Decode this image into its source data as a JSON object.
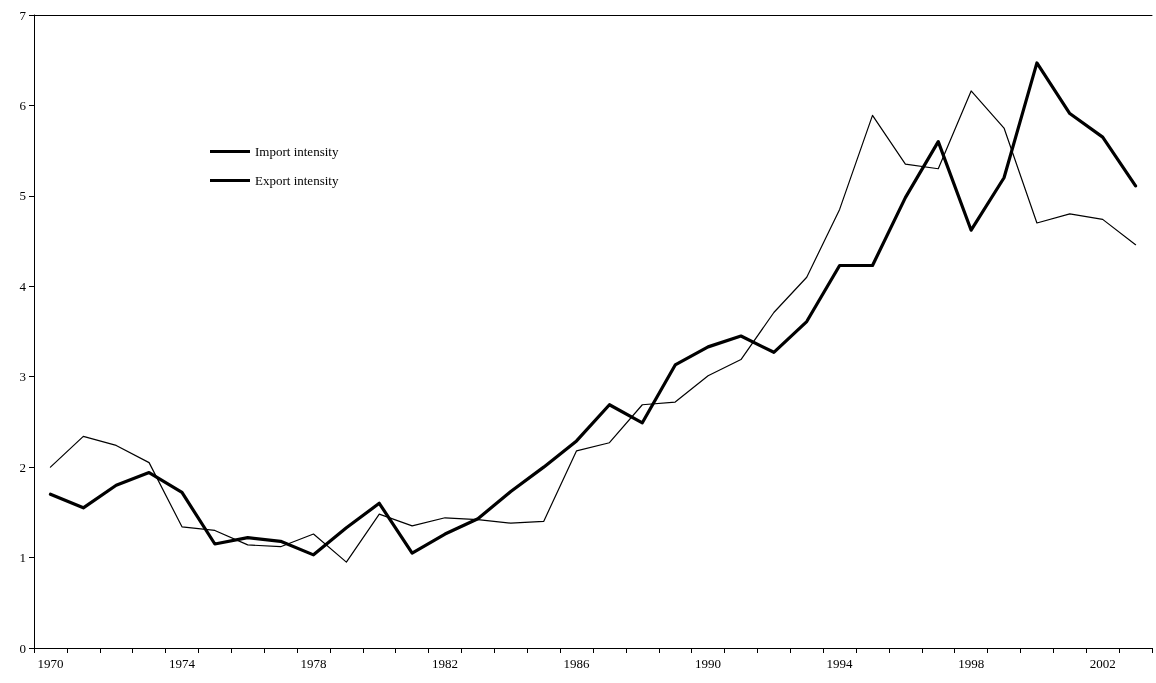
{
  "chart_data": {
    "type": "line",
    "categories": [
      "1970",
      null,
      null,
      null,
      "1974",
      null,
      null,
      null,
      "1978",
      null,
      null,
      null,
      "1982",
      null,
      null,
      null,
      "1986",
      null,
      null,
      null,
      "1990",
      null,
      null,
      null,
      "1994",
      null,
      null,
      null,
      "1998",
      null,
      null,
      null,
      "2002",
      null
    ],
    "series": [
      {
        "name": "Import intensity",
        "color": "#000000",
        "values": [
          1.7,
          1.55,
          1.8,
          1.94,
          1.72,
          1.15,
          1.22,
          1.18,
          1.03,
          1.33,
          1.6,
          1.05,
          1.26,
          1.43,
          1.73,
          2.0,
          2.29,
          2.69,
          2.49,
          3.13,
          3.33,
          3.45,
          3.27,
          3.61,
          4.23,
          4.23,
          4.98,
          5.6,
          4.62,
          5.2,
          6.47,
          5.91,
          5.65,
          5.11
        ]
      },
      {
        "name": "Export intensity",
        "color": "#000000",
        "values": [
          2.0,
          2.34,
          2.24,
          2.05,
          1.34,
          1.3,
          1.14,
          1.12,
          1.26,
          0.95,
          1.48,
          1.35,
          1.44,
          1.42,
          1.38,
          1.4,
          2.18,
          2.27,
          2.69,
          2.72,
          3.01,
          3.19,
          3.71,
          4.1,
          4.85,
          5.89,
          5.35,
          5.3,
          6.16,
          5.75,
          4.7,
          4.8,
          4.74,
          4.46
        ]
      }
    ],
    "ylim": [
      0,
      7
    ],
    "yticks": [
      0,
      1,
      2,
      3,
      4,
      5,
      6,
      7
    ],
    "grid": false,
    "legend": "top left",
    "marker": "none",
    "line_style": "solid"
  }
}
